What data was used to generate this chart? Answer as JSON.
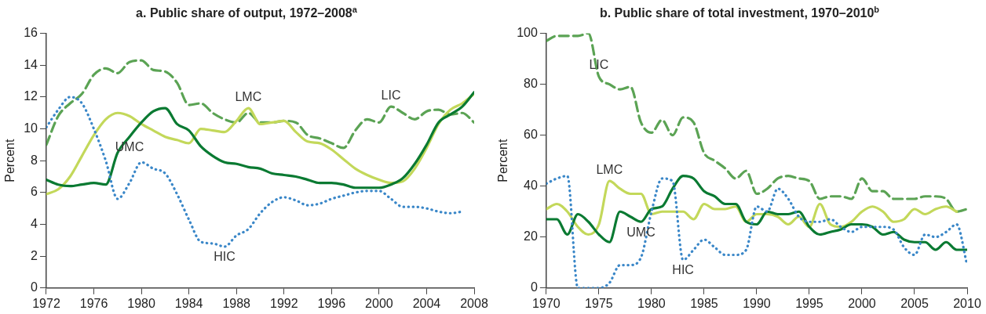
{
  "chart_data": [
    {
      "type": "line",
      "title": "a. Public share of output, 1972–2008$^{a}$",
      "ylabel": "Percent",
      "x": [
        1972,
        1973,
        1974,
        1975,
        1976,
        1977,
        1978,
        1979,
        1980,
        1981,
        1982,
        1983,
        1984,
        1985,
        1986,
        1987,
        1988,
        1989,
        1990,
        1991,
        1992,
        1993,
        1994,
        1995,
        1996,
        1997,
        1998,
        1999,
        2000,
        2001,
        2002,
        2003,
        2004,
        2005,
        2006,
        2007,
        2008
      ],
      "series": [
        {
          "name": "LIC",
          "color": "#5ba354",
          "line_style": "dashed",
          "values": [
            9.0,
            10.8,
            11.6,
            12.2,
            13.4,
            13.8,
            13.5,
            14.2,
            14.3,
            13.7,
            13.6,
            12.9,
            11.5,
            11.6,
            11.0,
            10.6,
            10.4,
            11.0,
            10.4,
            10.4,
            10.5,
            10.4,
            9.6,
            9.4,
            9.1,
            8.8,
            9.9,
            10.6,
            10.4,
            11.4,
            11.0,
            10.6,
            11.1,
            11.2,
            10.9,
            11.0,
            10.4
          ]
        },
        {
          "name": "LMC",
          "color": "#c3d85a",
          "line_style": "solid",
          "values": [
            5.9,
            6.2,
            7.0,
            8.3,
            9.6,
            10.6,
            11.0,
            10.8,
            10.3,
            9.9,
            9.5,
            9.3,
            9.1,
            10.0,
            9.9,
            9.8,
            10.5,
            11.3,
            10.3,
            10.4,
            10.5,
            9.8,
            9.2,
            9.1,
            8.7,
            8.1,
            7.5,
            7.1,
            6.8,
            6.6,
            6.7,
            7.5,
            8.8,
            10.3,
            11.2,
            11.6,
            12.2
          ]
        },
        {
          "name": "UMC",
          "color": "#0a7a32",
          "line_style": "solid",
          "values": [
            6.8,
            6.5,
            6.4,
            6.5,
            6.6,
            6.5,
            8.5,
            9.5,
            10.4,
            11.1,
            11.3,
            10.3,
            9.9,
            8.9,
            8.3,
            7.9,
            7.8,
            7.6,
            7.5,
            7.2,
            7.1,
            7.0,
            6.8,
            6.6,
            6.6,
            6.5,
            6.3,
            6.3,
            6.3,
            6.5,
            6.9,
            7.8,
            9.0,
            10.4,
            10.9,
            11.4,
            12.3
          ]
        },
        {
          "name": "HIC",
          "color": "#3a87c8",
          "line_style": "dotted",
          "values": [
            10.1,
            11.2,
            12.0,
            11.6,
            10.0,
            8.0,
            5.6,
            6.6,
            7.9,
            7.5,
            7.2,
            5.9,
            4.3,
            2.9,
            2.8,
            2.6,
            3.3,
            3.7,
            4.7,
            5.4,
            5.7,
            5.5,
            5.2,
            5.3,
            5.6,
            5.8,
            6.0,
            6.1,
            6.1,
            5.6,
            5.1,
            5.1,
            5.0,
            4.8,
            4.7,
            4.8,
            null
          ]
        }
      ],
      "xlim": [
        1972,
        2008
      ],
      "xticks": [
        1972,
        1976,
        1980,
        1984,
        1988,
        1992,
        1996,
        2000,
        2004,
        2008
      ],
      "ylim": [
        0,
        16
      ],
      "yticks": [
        0,
        2,
        4,
        6,
        8,
        10,
        12,
        14,
        16
      ],
      "grid": false,
      "legend": false
    },
    {
      "type": "line",
      "title": "b. Public share of total investment, 1970–2010$^{b}$",
      "ylabel": "Percent",
      "x": [
        1970,
        1971,
        1972,
        1973,
        1974,
        1975,
        1976,
        1977,
        1978,
        1979,
        1980,
        1981,
        1982,
        1983,
        1984,
        1985,
        1986,
        1987,
        1988,
        1989,
        1990,
        1991,
        1992,
        1993,
        1994,
        1995,
        1996,
        1997,
        1998,
        1999,
        2000,
        2001,
        2002,
        2003,
        2004,
        2005,
        2006,
        2007,
        2008,
        2009,
        2010
      ],
      "series": [
        {
          "name": "LIC",
          "color": "#5ba354",
          "line_style": "dashed",
          "values": [
            97,
            99,
            99,
            99,
            100,
            83,
            80,
            78,
            79,
            65,
            61,
            66,
            60,
            67,
            65,
            53,
            50,
            47,
            43,
            46,
            37,
            39,
            43,
            44,
            43,
            42,
            35,
            36,
            36,
            35,
            43,
            38,
            38,
            35,
            35,
            35,
            36,
            36,
            35,
            30,
            31
          ]
        },
        {
          "name": "LMC",
          "color": "#c3d85a",
          "line_style": "solid",
          "values": [
            31,
            33,
            30,
            24,
            21,
            25,
            42,
            39,
            37,
            37,
            29,
            30,
            30,
            30,
            27,
            33,
            31,
            31,
            32,
            26,
            29,
            29,
            28,
            25,
            28,
            24,
            33,
            25,
            24,
            26,
            30,
            32,
            30,
            26,
            27,
            31,
            29,
            31,
            32,
            30,
            null
          ]
        },
        {
          "name": "UMC",
          "color": "#0a7a32",
          "line_style": "solid",
          "values": [
            27,
            27,
            21,
            29,
            26,
            21,
            18,
            30,
            28,
            26,
            31,
            32,
            39,
            44,
            43,
            38,
            36,
            33,
            33,
            26,
            25,
            30,
            29,
            29,
            30,
            24,
            21,
            22,
            23,
            25,
            25,
            24,
            21,
            22,
            19,
            18,
            18,
            15,
            18,
            15,
            15
          ]
        },
        {
          "name": "HIC",
          "color": "#3a87c8",
          "line_style": "dotted",
          "values": [
            41,
            43,
            44,
            0,
            0,
            0,
            2,
            9,
            9,
            12,
            30,
            43,
            42,
            11,
            15,
            19,
            16,
            13,
            13,
            15,
            32,
            30,
            39,
            35,
            28,
            26,
            26,
            27,
            24,
            22,
            24,
            24,
            24,
            23,
            16,
            13,
            21,
            20,
            22,
            25,
            9
          ]
        }
      ],
      "xlim": [
        1970,
        2010
      ],
      "xticks": [
        1970,
        1975,
        1980,
        1985,
        1990,
        1995,
        2000,
        2005,
        2010
      ],
      "ylim": [
        0,
        100
      ],
      "yticks": [
        0,
        20,
        40,
        60,
        80,
        100
      ],
      "grid": false,
      "legend": false
    }
  ]
}
